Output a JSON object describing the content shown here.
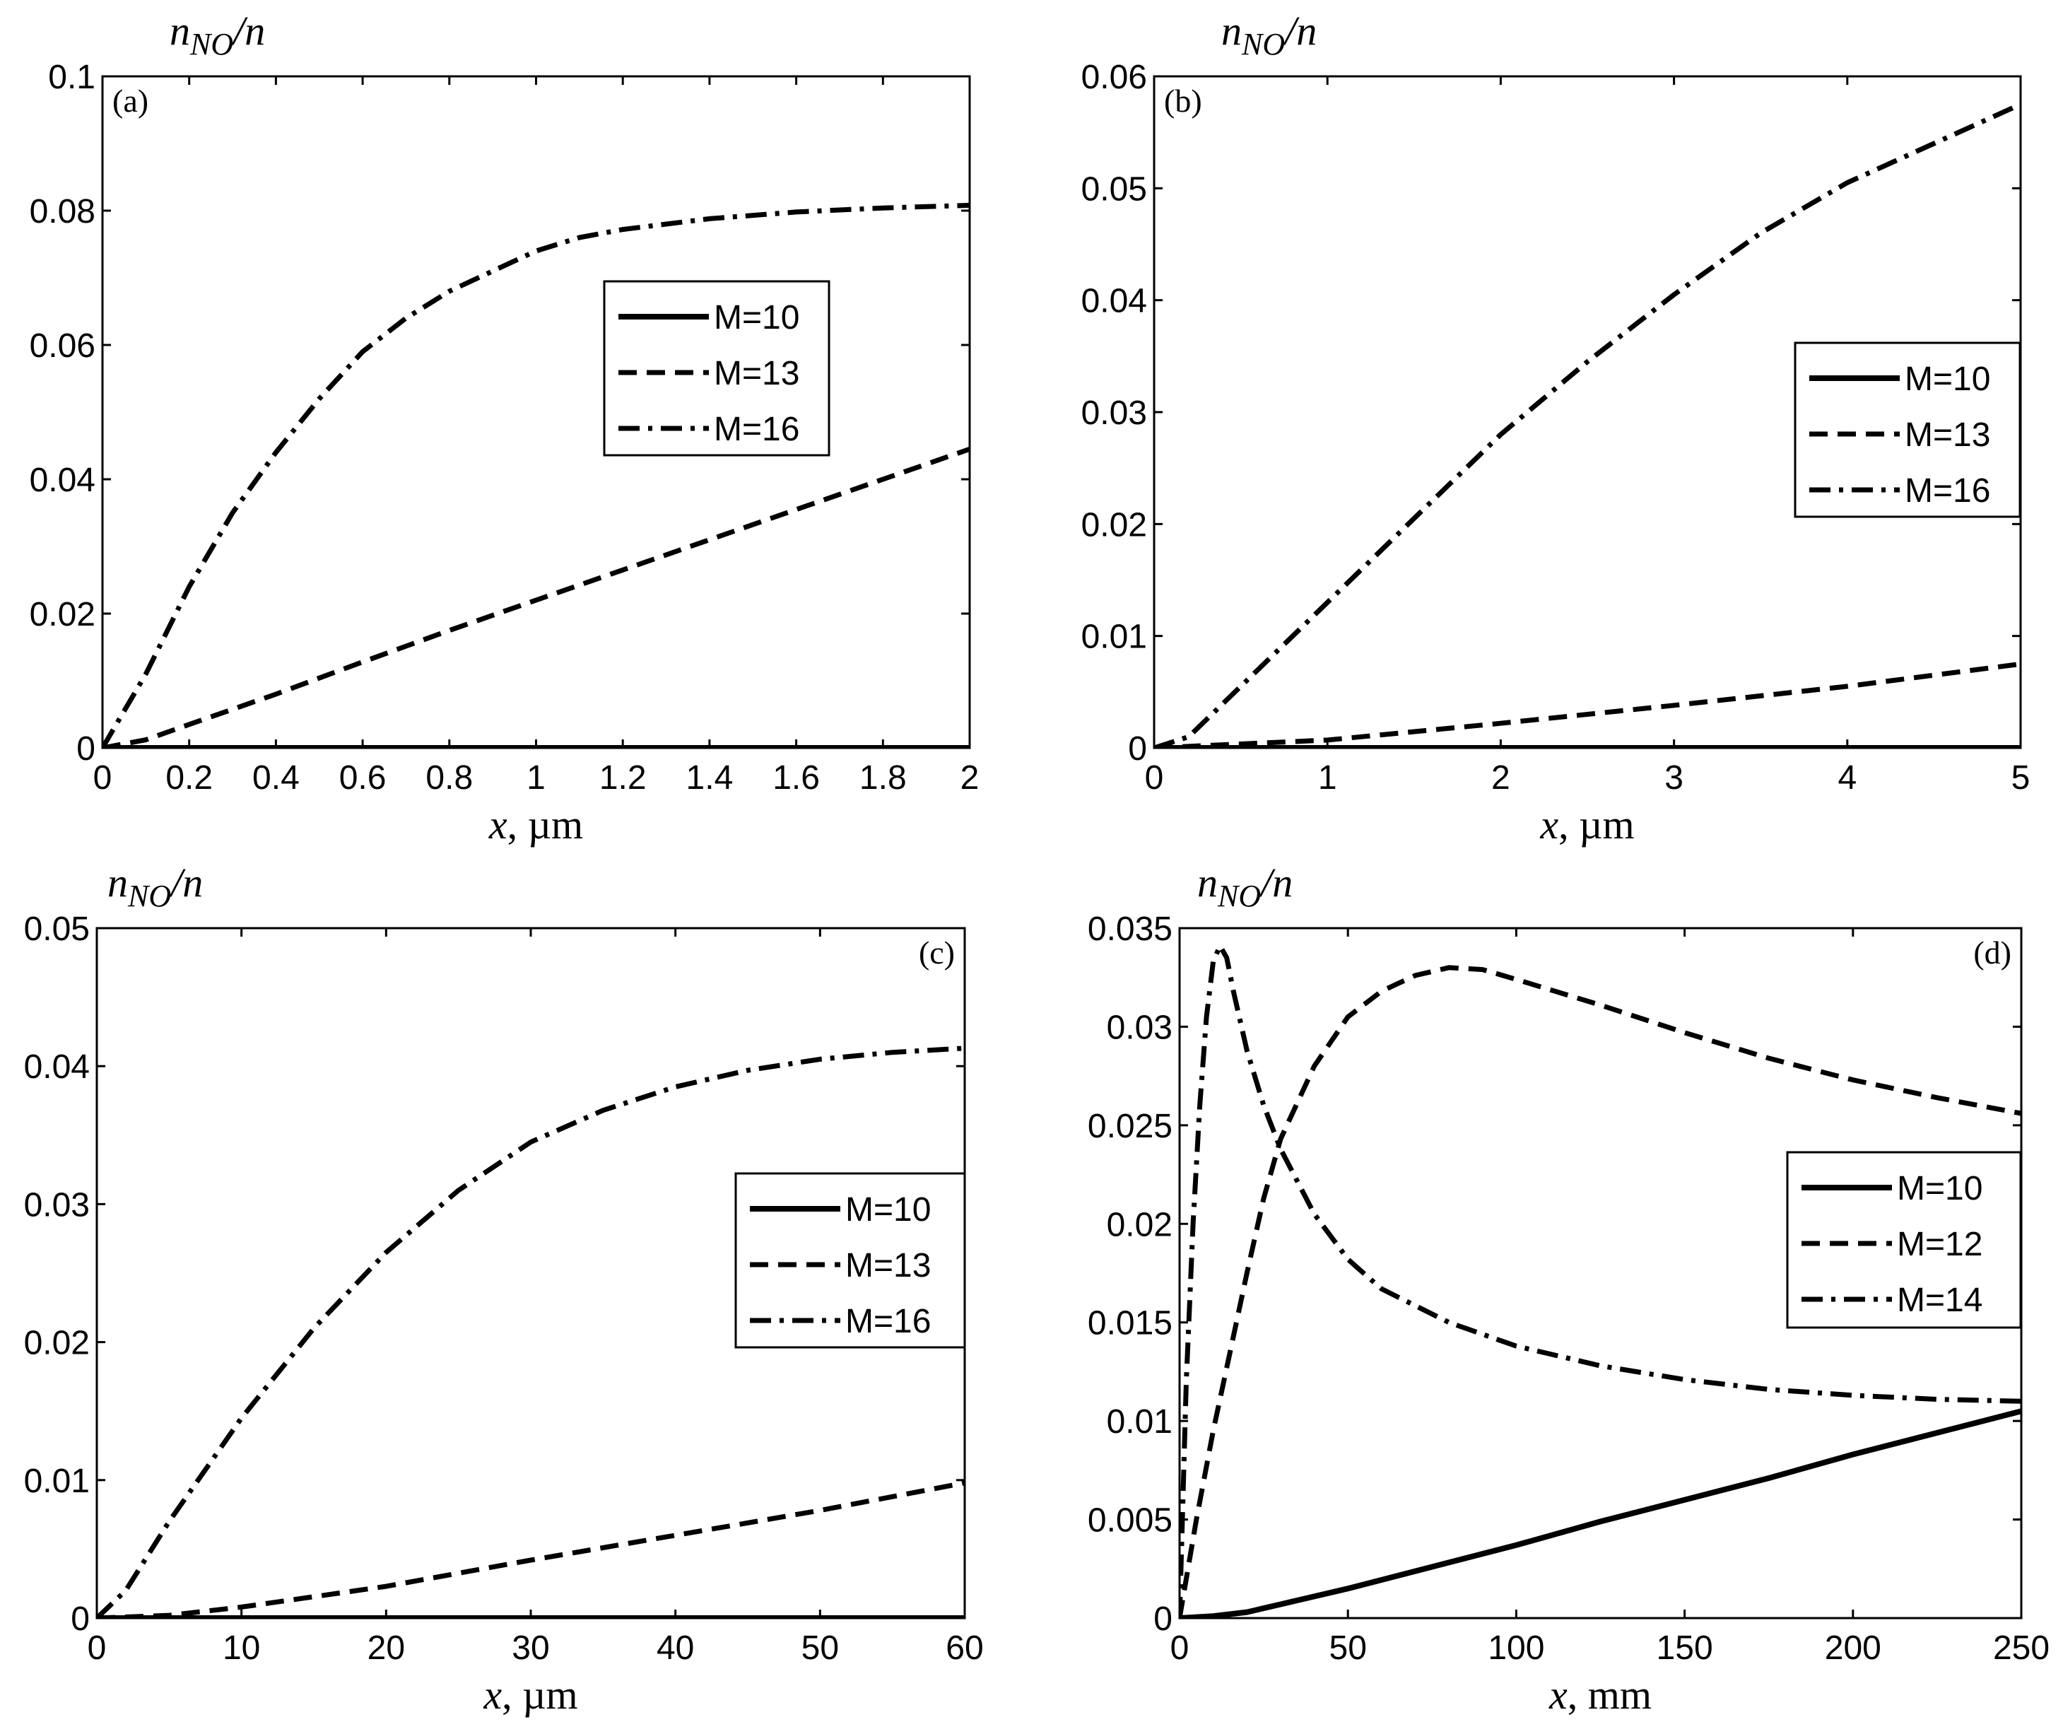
{
  "chart_data": [
    {
      "type": "line",
      "panel_label": "(a)",
      "ylabel_prefix": "n",
      "ylabel_sub": "NO",
      "ylabel_suffix": "/n",
      "xlabel_var": "x",
      "xlabel_unit": ", µm",
      "xlim": [
        0,
        2
      ],
      "ylim": [
        0,
        0.1
      ],
      "xticks": [
        "0",
        "0.2",
        "0.4",
        "0.6",
        "0.8",
        "1",
        "1.2",
        "1.4",
        "1.6",
        "1.8",
        "2"
      ],
      "yticks": [
        "0",
        "0.02",
        "0.04",
        "0.06",
        "0.08",
        "0.1"
      ],
      "legend_position": "center-right",
      "series": [
        {
          "name": "M=10",
          "style": "solid",
          "x": [
            0,
            0.5,
            1,
            1.5,
            2
          ],
          "y": [
            0,
            0,
            0,
            0,
            0
          ]
        },
        {
          "name": "M=13",
          "style": "dashed",
          "x": [
            0,
            0.1,
            0.2,
            0.4,
            0.6,
            0.8,
            1.0,
            1.2,
            1.4,
            1.6,
            1.8,
            2.0
          ],
          "y": [
            0,
            0.0012,
            0.0035,
            0.008,
            0.0128,
            0.0175,
            0.022,
            0.0265,
            0.031,
            0.0355,
            0.04,
            0.0445
          ]
        },
        {
          "name": "M=16",
          "style": "dashdot",
          "x": [
            0,
            0.1,
            0.2,
            0.3,
            0.4,
            0.5,
            0.6,
            0.7,
            0.8,
            0.9,
            1.0,
            1.1,
            1.2,
            1.4,
            1.6,
            1.8,
            2.0
          ],
          "y": [
            0,
            0.011,
            0.024,
            0.035,
            0.044,
            0.052,
            0.059,
            0.064,
            0.068,
            0.071,
            0.074,
            0.076,
            0.0772,
            0.0788,
            0.0798,
            0.0804,
            0.0808
          ]
        }
      ]
    },
    {
      "type": "line",
      "panel_label": "(b)",
      "ylabel_prefix": "n",
      "ylabel_sub": "NO",
      "ylabel_suffix": "/n",
      "xlabel_var": "x",
      "xlabel_unit": ", µm",
      "xlim": [
        0,
        5
      ],
      "ylim": [
        0,
        0.06
      ],
      "xticks": [
        "0",
        "1",
        "2",
        "3",
        "4",
        "5"
      ],
      "yticks": [
        "0",
        "0.01",
        "0.02",
        "0.03",
        "0.04",
        "0.05",
        "0.06"
      ],
      "legend_position": "right",
      "series": [
        {
          "name": "M=10",
          "style": "solid",
          "x": [
            0,
            1,
            2,
            3,
            4,
            5
          ],
          "y": [
            0,
            0,
            0,
            0,
            0,
            0
          ]
        },
        {
          "name": "M=13",
          "style": "dashed",
          "x": [
            0,
            1,
            2,
            3,
            4,
            5
          ],
          "y": [
            0,
            0.0007,
            0.0022,
            0.0038,
            0.0055,
            0.0075
          ]
        },
        {
          "name": "M=16",
          "style": "dashdot",
          "x": [
            0,
            0.2,
            0.5,
            1,
            1.5,
            2,
            2.5,
            3,
            3.5,
            4,
            4.5,
            5
          ],
          "y": [
            0,
            0.001,
            0.0055,
            0.013,
            0.0205,
            0.028,
            0.0345,
            0.0405,
            0.046,
            0.0505,
            0.054,
            0.0575
          ]
        }
      ]
    },
    {
      "type": "line",
      "panel_label": "(c)",
      "ylabel_prefix": "n",
      "ylabel_sub": "NO",
      "ylabel_suffix": "/n",
      "xlabel_var": "x",
      "xlabel_unit": ", µm",
      "xlim": [
        0,
        60
      ],
      "ylim": [
        0,
        0.05
      ],
      "xticks": [
        "0",
        "10",
        "20",
        "30",
        "40",
        "50",
        "60"
      ],
      "yticks": [
        "0",
        "0.01",
        "0.02",
        "0.03",
        "0.04",
        "0.05"
      ],
      "legend_position": "center-right",
      "series": [
        {
          "name": "M=10",
          "style": "solid",
          "x": [
            0,
            20,
            40,
            60
          ],
          "y": [
            0,
            0,
            0,
            0
          ]
        },
        {
          "name": "M=13",
          "style": "dashed",
          "x": [
            0,
            5,
            10,
            20,
            30,
            40,
            50,
            60
          ],
          "y": [
            0,
            0.0002,
            0.0008,
            0.0023,
            0.0042,
            0.006,
            0.0078,
            0.0098
          ]
        },
        {
          "name": "M=16",
          "style": "dashdot",
          "x": [
            0,
            2,
            5,
            10,
            15,
            20,
            25,
            30,
            35,
            40,
            45,
            50,
            55,
            60
          ],
          "y": [
            0,
            0.002,
            0.007,
            0.0145,
            0.021,
            0.0265,
            0.031,
            0.0345,
            0.0368,
            0.0385,
            0.0397,
            0.0405,
            0.041,
            0.0413
          ]
        }
      ]
    },
    {
      "type": "line",
      "panel_label": "(d)",
      "ylabel_prefix": "n",
      "ylabel_sub": "NO",
      "ylabel_suffix": "/n",
      "xlabel_var": "x",
      "xlabel_unit": ", mm",
      "xlim": [
        0,
        250
      ],
      "ylim": [
        0,
        0.035
      ],
      "xticks": [
        "0",
        "50",
        "100",
        "150",
        "200",
        "250"
      ],
      "yticks": [
        "0",
        "0.005",
        "0.01",
        "0.015",
        "0.02",
        "0.025",
        "0.03",
        "0.035"
      ],
      "legend_position": "right",
      "series": [
        {
          "name": "M=10",
          "style": "solid",
          "x": [
            0,
            10,
            20,
            30,
            50,
            75,
            100,
            125,
            150,
            175,
            200,
            225,
            250
          ],
          "y": [
            0,
            0.0001,
            0.0003,
            0.0007,
            0.0015,
            0.0026,
            0.0037,
            0.0049,
            0.006,
            0.0071,
            0.0083,
            0.0094,
            0.0105
          ]
        },
        {
          "name": "M=12",
          "style": "dashed",
          "x": [
            0,
            5,
            10,
            15,
            20,
            25,
            30,
            40,
            50,
            60,
            70,
            80,
            90,
            100,
            125,
            150,
            175,
            200,
            225,
            250
          ],
          "y": [
            0,
            0.005,
            0.0095,
            0.0135,
            0.0175,
            0.0213,
            0.0243,
            0.028,
            0.0305,
            0.0318,
            0.0326,
            0.033,
            0.0329,
            0.0324,
            0.0311,
            0.0297,
            0.0284,
            0.0273,
            0.0264,
            0.0256
          ]
        },
        {
          "name": "M=14",
          "style": "dashdot",
          "x": [
            0,
            2,
            4,
            6,
            8,
            10,
            12,
            14,
            16,
            20,
            25,
            30,
            40,
            50,
            60,
            80,
            100,
            125,
            150,
            175,
            200,
            225,
            250
          ],
          "y": [
            0,
            0.012,
            0.02,
            0.026,
            0.0305,
            0.0333,
            0.0341,
            0.0335,
            0.0318,
            0.0288,
            0.026,
            0.0238,
            0.0205,
            0.0182,
            0.0167,
            0.015,
            0.0138,
            0.0128,
            0.0121,
            0.0116,
            0.0113,
            0.0111,
            0.011
          ]
        }
      ]
    }
  ]
}
